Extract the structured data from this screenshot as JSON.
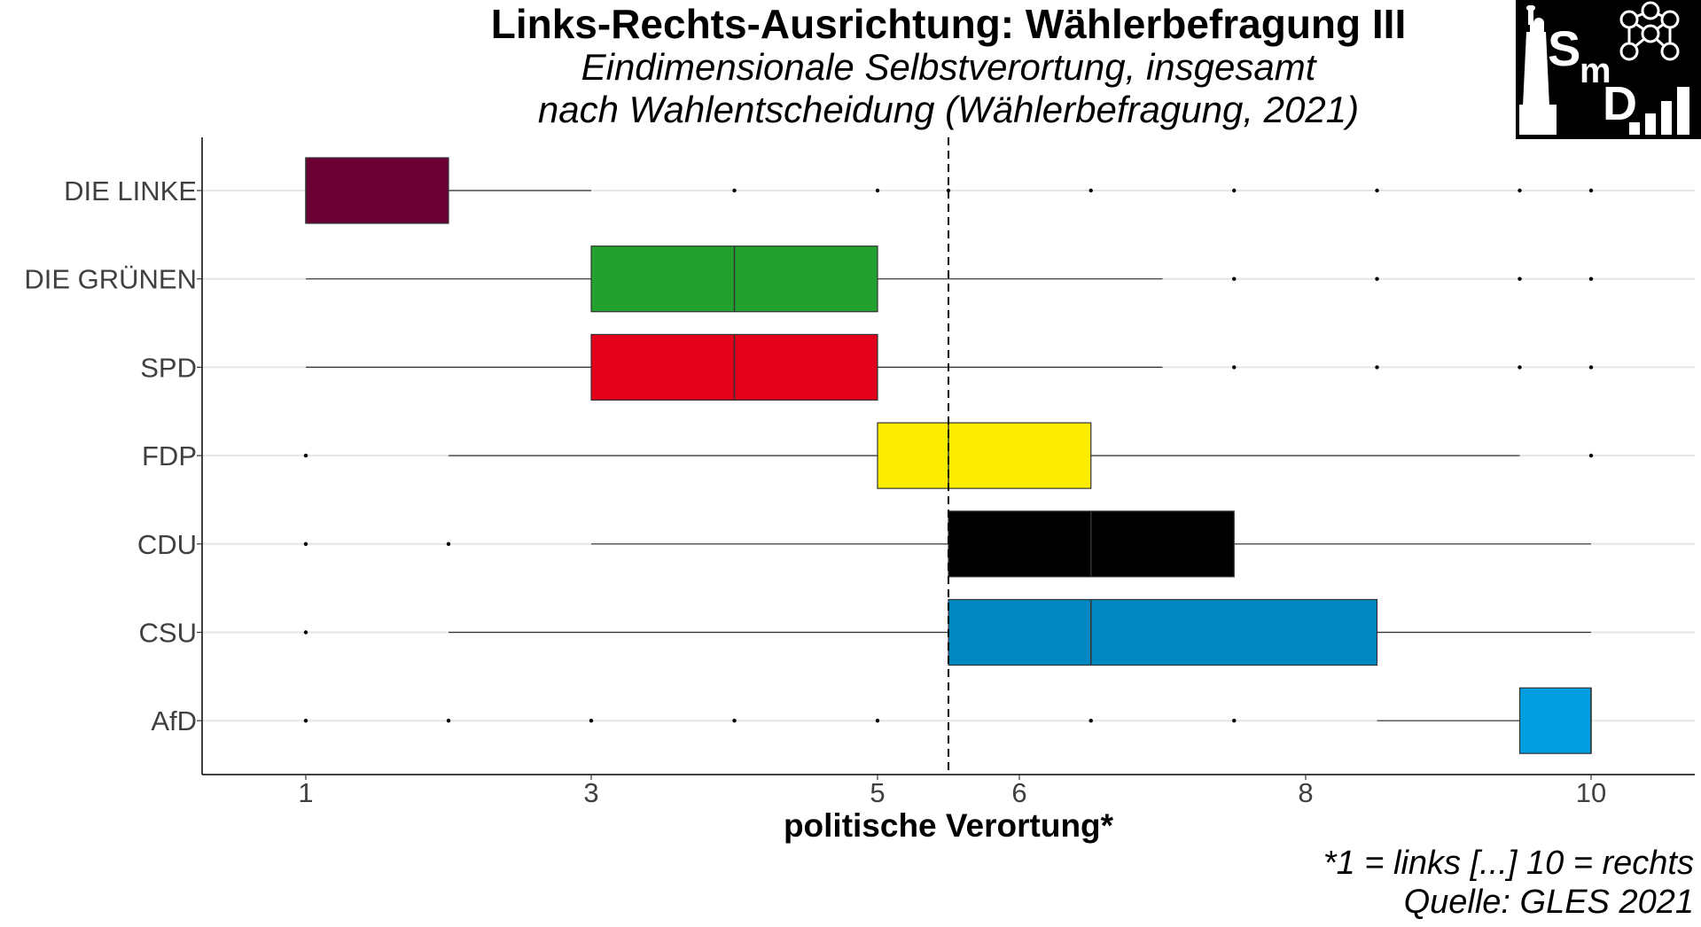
{
  "logo": {
    "letters": [
      "S",
      "m",
      "D"
    ]
  },
  "chart_data": {
    "type": "boxplot",
    "title": "Links-Rechts-Ausrichtung: Wählerbefragung III",
    "subtitle_lines": [
      "Eindimensionale Selbstverortung, insgesamt",
      "nach Wahlentscheidung (Wählerbefragung, 2021)"
    ],
    "xlabel": "politische Verortung*",
    "ylabel": "",
    "xlim": [
      0.6,
      10.8
    ],
    "x_ticks": [
      1,
      3,
      5,
      6,
      8,
      10
    ],
    "reference_line": 5.5,
    "grid": "horizontal",
    "legend": "none",
    "categories": [
      "DIE LINKE",
      "DIE GRÜNEN",
      "SPD",
      "FDP",
      "CDU",
      "CSU",
      "AfD"
    ],
    "colors": [
      "#6b0035",
      "#22a12e",
      "#e2001a",
      "#ffed00",
      "#000000",
      "#0087c1",
      "#009ee0"
    ],
    "boxes": [
      {
        "whisker_low": 1,
        "q1": 1,
        "median": 1,
        "q3": 2,
        "whisker_high": 3,
        "outliers": [
          4,
          5,
          5.5,
          6.5,
          7.5,
          8.5,
          9.5,
          10
        ]
      },
      {
        "whisker_low": 1,
        "q1": 3,
        "median": 4,
        "q3": 5,
        "whisker_high": 7,
        "outliers": [
          7.5,
          8.5,
          9.5,
          10
        ]
      },
      {
        "whisker_low": 1,
        "q1": 3,
        "median": 4,
        "q3": 5,
        "whisker_high": 7,
        "outliers": [
          7.5,
          8.5,
          9.5,
          10
        ]
      },
      {
        "whisker_low": 2,
        "q1": 5,
        "median": 5.5,
        "q3": 6.5,
        "whisker_high": 9.5,
        "outliers": [
          1,
          10
        ]
      },
      {
        "whisker_low": 3,
        "q1": 5.5,
        "median": 6.5,
        "q3": 7.5,
        "whisker_high": 10,
        "outliers": [
          1,
          2
        ]
      },
      {
        "whisker_low": 2,
        "q1": 5.5,
        "median": 6.5,
        "q3": 8.5,
        "whisker_high": 10,
        "outliers": [
          1
        ]
      },
      {
        "whisker_low": 8.5,
        "q1": 9.5,
        "median": 10,
        "q3": 10,
        "whisker_high": 10,
        "outliers": [
          1,
          2,
          3,
          4,
          5,
          6.5,
          7.5
        ]
      }
    ]
  },
  "notes": [
    "*1 = links [...] 10 = rechts",
    "Quelle: GLES 2021"
  ]
}
